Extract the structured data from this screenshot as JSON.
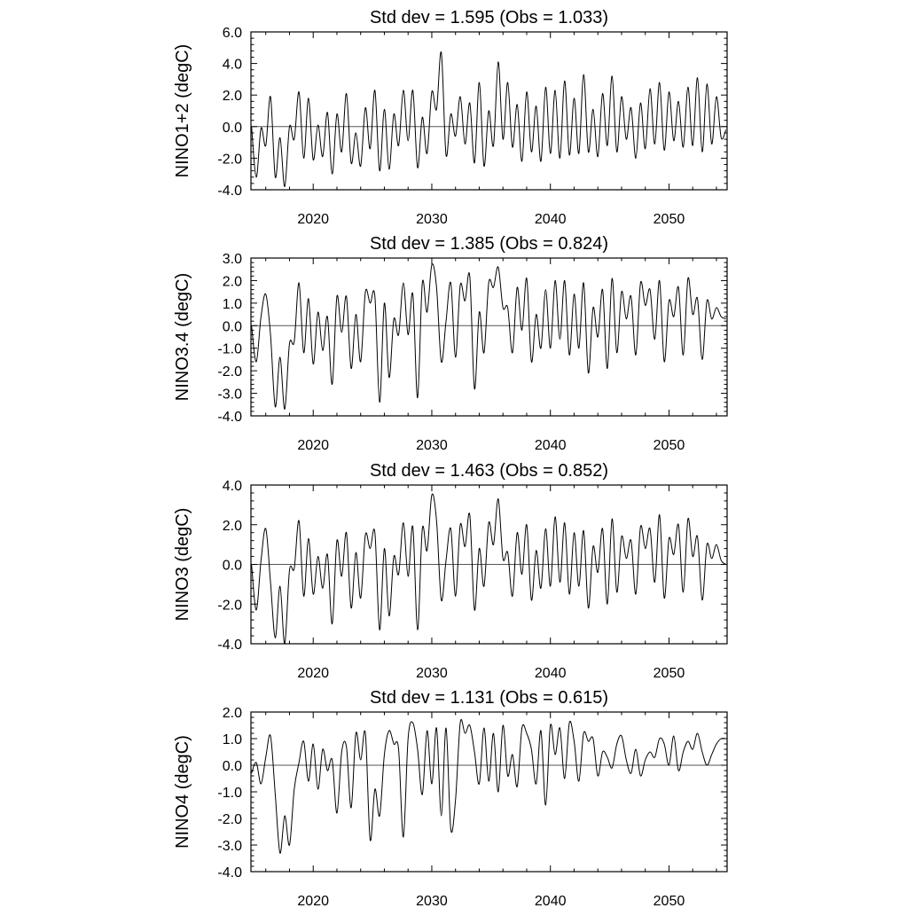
{
  "chart_data": [
    {
      "type": "line",
      "title": "Std dev = 1.595 (Obs = 1.033)",
      "ylabel": "NINO1+2 (degC)",
      "xlabel": "",
      "xlim": [
        2014.75,
        2054.9
      ],
      "ylim": [
        -4.0,
        6.0
      ],
      "xticks": [
        2020,
        2030,
        2040,
        2050
      ],
      "yticks": [
        -4.0,
        -2.0,
        0.0,
        2.0,
        4.0,
        6.0
      ],
      "ytick_labels": [
        "-4.0",
        "-2.0",
        "0.0",
        "2.0",
        "4.0",
        "6.0"
      ],
      "reference_line": 0.0,
      "grid": false,
      "series": [
        {
          "x": [
            2014.8,
            2015.2,
            2015.6,
            2016.0,
            2016.4,
            2016.8,
            2017.2,
            2017.6,
            2018.0,
            2018.4,
            2018.8,
            2019.2,
            2019.6,
            2020.0,
            2020.4,
            2020.8,
            2021.2,
            2021.6,
            2022.0,
            2022.4,
            2022.8,
            2023.2,
            2023.6,
            2024.0,
            2024.4,
            2024.8,
            2025.2,
            2025.6,
            2026.0,
            2026.4,
            2026.8,
            2027.2,
            2027.6,
            2028.0,
            2028.4,
            2028.8,
            2029.2,
            2029.6,
            2030.0,
            2030.4,
            2030.8,
            2031.2,
            2031.6,
            2032.0,
            2032.4,
            2032.8,
            2033.2,
            2033.6,
            2034.0,
            2034.4,
            2034.8,
            2035.2,
            2035.6,
            2036.0,
            2036.4,
            2036.8,
            2037.2,
            2037.6,
            2038.0,
            2038.4,
            2038.8,
            2039.2,
            2039.6,
            2040.0,
            2040.4,
            2040.8,
            2041.2,
            2041.6,
            2042.0,
            2042.4,
            2042.8,
            2043.2,
            2043.6,
            2044.0,
            2044.4,
            2044.8,
            2045.2,
            2045.6,
            2046.0,
            2046.4,
            2046.8,
            2047.2,
            2047.6,
            2048.0,
            2048.4,
            2048.8,
            2049.2,
            2049.6,
            2050.0,
            2050.4,
            2050.8,
            2051.2,
            2051.6,
            2052.0,
            2052.4,
            2052.8,
            2053.2,
            2053.6,
            2054.0,
            2054.4,
            2054.8
          ],
          "y": [
            0.0,
            -3.2,
            -0.1,
            -1.2,
            1.9,
            -3.2,
            -0.7,
            -3.8,
            0.0,
            -0.8,
            2.2,
            -2.0,
            1.8,
            -2.1,
            0.1,
            -1.9,
            0.9,
            -3.0,
            0.8,
            -1.6,
            2.1,
            -2.3,
            -0.4,
            -2.5,
            1.2,
            -1.4,
            2.3,
            -2.8,
            1.1,
            -2.7,
            0.8,
            -1.2,
            2.3,
            -0.9,
            2.3,
            -2.6,
            0.6,
            -1.7,
            2.2,
            1.1,
            4.7,
            -1.8,
            0.8,
            -0.6,
            1.9,
            -1.1,
            1.5,
            -2.3,
            2.8,
            -2.5,
            1.0,
            -1.2,
            4.1,
            -0.8,
            2.8,
            -1.3,
            1.4,
            -2.2,
            2.2,
            -1.6,
            1.3,
            -2.2,
            2.5,
            -1.7,
            2.3,
            -2.0,
            2.9,
            -1.8,
            1.8,
            -1.7,
            3.3,
            -1.6,
            1.1,
            -1.9,
            2.1,
            -1.2,
            3.2,
            -1.6,
            1.9,
            -0.8,
            1.2,
            -2.0,
            1.5,
            -1.4,
            2.4,
            -1.1,
            2.8,
            -1.5,
            2.2,
            -0.9,
            1.6,
            -1.3,
            2.5,
            -1.2,
            3.1,
            -1.6,
            2.7,
            -1.1,
            1.9,
            -0.7,
            -0.2
          ]
        }
      ]
    },
    {
      "type": "line",
      "title": "Std dev = 1.385 (Obs = 0.824)",
      "ylabel": "NINO3.4 (degC)",
      "xlabel": "",
      "xlim": [
        2014.75,
        2054.9
      ],
      "ylim": [
        -4.0,
        3.0
      ],
      "xticks": [
        2020,
        2030,
        2040,
        2050
      ],
      "yticks": [
        -4.0,
        -3.0,
        -2.0,
        -1.0,
        0.0,
        1.0,
        2.0,
        3.0
      ],
      "ytick_labels": [
        "-4.0",
        "-3.0",
        "-2.0",
        "-1.0",
        "0.0",
        "1.0",
        "2.0",
        "3.0"
      ],
      "reference_line": 0.0,
      "grid": false,
      "series": [
        {
          "x": [
            2014.8,
            2015.2,
            2015.6,
            2016.0,
            2016.4,
            2016.8,
            2017.2,
            2017.6,
            2018.0,
            2018.4,
            2018.8,
            2019.2,
            2019.6,
            2020.0,
            2020.4,
            2020.8,
            2021.2,
            2021.6,
            2022.0,
            2022.4,
            2022.8,
            2023.2,
            2023.6,
            2024.0,
            2024.4,
            2024.8,
            2025.2,
            2025.6,
            2026.0,
            2026.4,
            2026.8,
            2027.2,
            2027.6,
            2028.0,
            2028.4,
            2028.8,
            2029.2,
            2029.6,
            2030.0,
            2030.4,
            2030.8,
            2031.2,
            2031.6,
            2032.0,
            2032.4,
            2032.8,
            2033.2,
            2033.6,
            2034.0,
            2034.4,
            2034.8,
            2035.2,
            2035.6,
            2036.0,
            2036.4,
            2036.8,
            2037.2,
            2037.6,
            2038.0,
            2038.4,
            2038.8,
            2039.2,
            2039.6,
            2040.0,
            2040.4,
            2040.8,
            2041.2,
            2041.6,
            2042.0,
            2042.4,
            2042.8,
            2043.2,
            2043.6,
            2044.0,
            2044.4,
            2044.8,
            2045.2,
            2045.6,
            2046.0,
            2046.4,
            2046.8,
            2047.2,
            2047.6,
            2048.0,
            2048.4,
            2048.8,
            2049.2,
            2049.6,
            2050.0,
            2050.4,
            2050.8,
            2051.2,
            2051.6,
            2052.0,
            2052.4,
            2052.8,
            2053.2,
            2053.6,
            2054.0,
            2054.4,
            2054.8
          ],
          "y": [
            0.0,
            -1.6,
            0.4,
            1.4,
            -0.4,
            -3.6,
            -1.4,
            -3.7,
            -0.8,
            -0.7,
            1.9,
            -1.2,
            1.2,
            -1.7,
            0.6,
            -1.1,
            0.4,
            -2.6,
            1.3,
            -0.3,
            1.3,
            -1.9,
            0.5,
            -1.6,
            1.5,
            1.0,
            1.3,
            -3.4,
            1.0,
            -2.3,
            0.3,
            -0.4,
            1.9,
            -0.4,
            1.4,
            -3.2,
            1.9,
            0.6,
            2.7,
            1.7,
            -1.6,
            0.2,
            1.9,
            -1.4,
            1.8,
            1.1,
            2.2,
            -2.8,
            0.6,
            -1.2,
            1.9,
            1.7,
            2.6,
            0.8,
            0.8,
            -1.2,
            1.7,
            -0.2,
            2.1,
            -1.6,
            0.5,
            -1.0,
            1.6,
            -1.0,
            2.0,
            -0.6,
            2.0,
            -1.3,
            1.4,
            -1.0,
            1.9,
            -2.1,
            0.8,
            -0.5,
            1.6,
            -1.9,
            2.1,
            -1.2,
            1.5,
            0.3,
            1.3,
            -1.3,
            1.9,
            0.9,
            1.6,
            -0.6,
            2.0,
            -1.6,
            1.1,
            0.4,
            1.7,
            -1.3,
            2.1,
            0.5,
            1.2,
            -1.5,
            1.1,
            0.3,
            0.8,
            0.4,
            0.3
          ]
        }
      ]
    },
    {
      "type": "line",
      "title": "Std dev = 1.463 (Obs = 0.852)",
      "ylabel": "NINO3 (degC)",
      "xlabel": "",
      "xlim": [
        2014.75,
        2054.9
      ],
      "ylim": [
        -4.0,
        4.0
      ],
      "xticks": [
        2020,
        2030,
        2040,
        2050
      ],
      "yticks": [
        -4.0,
        -2.0,
        0.0,
        2.0,
        4.0
      ],
      "ytick_labels": [
        "-4.0",
        "-2.0",
        "0.0",
        "2.0",
        "4.0"
      ],
      "reference_line": 0.0,
      "grid": false,
      "series": [
        {
          "x": [
            2014.8,
            2015.2,
            2015.6,
            2016.0,
            2016.4,
            2016.8,
            2017.2,
            2017.6,
            2018.0,
            2018.4,
            2018.8,
            2019.2,
            2019.6,
            2020.0,
            2020.4,
            2020.8,
            2021.2,
            2021.6,
            2022.0,
            2022.4,
            2022.8,
            2023.2,
            2023.6,
            2024.0,
            2024.4,
            2024.8,
            2025.2,
            2025.6,
            2026.0,
            2026.4,
            2026.8,
            2027.2,
            2027.6,
            2028.0,
            2028.4,
            2028.8,
            2029.2,
            2029.6,
            2030.0,
            2030.4,
            2030.8,
            2031.2,
            2031.6,
            2032.0,
            2032.4,
            2032.8,
            2033.2,
            2033.6,
            2034.0,
            2034.4,
            2034.8,
            2035.2,
            2035.6,
            2036.0,
            2036.4,
            2036.8,
            2037.2,
            2037.6,
            2038.0,
            2038.4,
            2038.8,
            2039.2,
            2039.6,
            2040.0,
            2040.4,
            2040.8,
            2041.2,
            2041.6,
            2042.0,
            2042.4,
            2042.8,
            2043.2,
            2043.6,
            2044.0,
            2044.4,
            2044.8,
            2045.2,
            2045.6,
            2046.0,
            2046.4,
            2046.8,
            2047.2,
            2047.6,
            2048.0,
            2048.4,
            2048.8,
            2049.2,
            2049.6,
            2050.0,
            2050.4,
            2050.8,
            2051.2,
            2051.6,
            2052.0,
            2052.4,
            2052.8,
            2053.2,
            2053.6,
            2054.0,
            2054.4,
            2054.8
          ],
          "y": [
            0.0,
            -2.3,
            0.2,
            1.8,
            -0.9,
            -3.7,
            -1.1,
            -4.0,
            -0.3,
            -0.2,
            2.2,
            -1.6,
            1.3,
            -1.5,
            0.4,
            -1.2,
            0.5,
            -3.0,
            1.2,
            -0.6,
            1.6,
            -2.2,
            0.6,
            -1.7,
            1.5,
            0.8,
            1.6,
            -3.3,
            0.8,
            -2.6,
            0.4,
            -0.5,
            2.1,
            -0.6,
            1.9,
            -3.3,
            1.8,
            0.7,
            3.5,
            2.2,
            -1.8,
            0.2,
            1.8,
            -1.6,
            2.0,
            0.9,
            2.5,
            -2.3,
            0.8,
            -1.1,
            2.1,
            1.0,
            3.3,
            0.3,
            0.6,
            -1.6,
            1.6,
            -0.5,
            2.0,
            -1.8,
            0.7,
            -1.2,
            1.8,
            -1.1,
            2.4,
            -0.9,
            2.1,
            -1.5,
            1.6,
            -1.1,
            1.7,
            -2.2,
            0.9,
            -0.4,
            1.8,
            -2.0,
            2.3,
            -1.4,
            1.4,
            0.3,
            1.2,
            -1.5,
            1.9,
            0.8,
            1.8,
            -0.9,
            2.5,
            -1.7,
            1.3,
            0.5,
            2.0,
            -1.4,
            2.3,
            0.4,
            1.4,
            -1.8,
            1.0,
            0.3,
            1.0,
            0.2,
            0.0
          ]
        }
      ]
    },
    {
      "type": "line",
      "title": "Std dev = 1.131 (Obs = 0.615)",
      "ylabel": "NINO4 (degC)",
      "xlabel": "",
      "xlim": [
        2014.75,
        2054.9
      ],
      "ylim": [
        -4.0,
        2.0
      ],
      "xticks": [
        2020,
        2030,
        2040,
        2050
      ],
      "yticks": [
        -4.0,
        -3.0,
        -2.0,
        -1.0,
        0.0,
        1.0,
        2.0
      ],
      "ytick_labels": [
        "-4.0",
        "-3.0",
        "-2.0",
        "-1.0",
        "0.0",
        "1.0",
        "2.0"
      ],
      "reference_line": 0.0,
      "grid": false,
      "series": [
        {
          "x": [
            2014.8,
            2015.2,
            2015.6,
            2016.0,
            2016.4,
            2016.8,
            2017.2,
            2017.6,
            2018.0,
            2018.4,
            2018.8,
            2019.2,
            2019.6,
            2020.0,
            2020.4,
            2020.8,
            2021.2,
            2021.6,
            2022.0,
            2022.4,
            2022.8,
            2023.2,
            2023.6,
            2024.0,
            2024.4,
            2024.8,
            2025.2,
            2025.6,
            2026.0,
            2026.4,
            2026.8,
            2027.2,
            2027.6,
            2028.0,
            2028.4,
            2028.8,
            2029.2,
            2029.6,
            2030.0,
            2030.4,
            2030.8,
            2031.2,
            2031.6,
            2032.0,
            2032.4,
            2032.8,
            2033.2,
            2033.6,
            2034.0,
            2034.4,
            2034.8,
            2035.2,
            2035.6,
            2036.0,
            2036.4,
            2036.8,
            2037.2,
            2037.6,
            2038.0,
            2038.4,
            2038.8,
            2039.2,
            2039.6,
            2040.0,
            2040.4,
            2040.8,
            2041.2,
            2041.6,
            2042.0,
            2042.4,
            2042.8,
            2043.2,
            2043.6,
            2044.0,
            2044.4,
            2044.8,
            2045.2,
            2045.6,
            2046.0,
            2046.4,
            2046.8,
            2047.2,
            2047.6,
            2048.0,
            2048.4,
            2048.8,
            2049.2,
            2049.6,
            2050.0,
            2050.4,
            2050.8,
            2051.2,
            2051.6,
            2052.0,
            2052.4,
            2052.8,
            2053.2,
            2053.6,
            2054.0,
            2054.4,
            2054.8
          ],
          "y": [
            -0.3,
            0.1,
            -0.7,
            0.3,
            1.1,
            -1.1,
            -3.3,
            -1.9,
            -3.0,
            -0.9,
            0.1,
            0.9,
            -0.6,
            0.8,
            -0.9,
            0.6,
            -0.2,
            0.2,
            -1.8,
            0.5,
            0.7,
            -1.6,
            1.2,
            0.2,
            1.2,
            -2.8,
            -0.9,
            -1.9,
            0.4,
            1.3,
            0.8,
            0.6,
            -2.7,
            1.0,
            1.6,
            0.6,
            -1.1,
            1.3,
            -0.7,
            1.4,
            -1.9,
            1.4,
            -2.4,
            -1.3,
            1.6,
            1.2,
            1.5,
            0.5,
            -0.7,
            1.4,
            -0.6,
            1.2,
            -1.0,
            1.5,
            -0.4,
            0.4,
            -0.8,
            1.4,
            1.2,
            0.6,
            -0.7,
            1.3,
            -1.5,
            1.5,
            0.4,
            1.4,
            -0.5,
            1.6,
            0.9,
            -0.6,
            1.2,
            0.9,
            1.0,
            -0.4,
            0.5,
            0.3,
            -0.1,
            0.8,
            1.1,
            0.2,
            -0.3,
            0.6,
            -0.4,
            0.2,
            0.5,
            0.3,
            1.0,
            0.8,
            0.0,
            1.1,
            -0.2,
            0.5,
            0.9,
            0.6,
            1.2,
            0.5,
            0.0,
            0.4,
            0.8,
            1.0,
            1.0
          ]
        }
      ]
    }
  ]
}
